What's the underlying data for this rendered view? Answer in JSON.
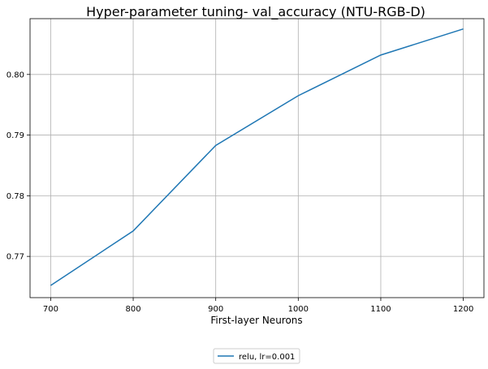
{
  "chart_data": {
    "type": "line",
    "title": "Hyper-parameter tuning- val_accuracy (NTU-RGB-D)",
    "xlabel": "First-layer Neurons",
    "ylabel": "",
    "x": [
      700,
      800,
      900,
      1000,
      1100,
      1200
    ],
    "series": [
      {
        "name": "relu, lr=0.001",
        "values": [
          0.7652,
          0.7742,
          0.7883,
          0.7965,
          0.8032,
          0.8075
        ],
        "color": "#1f77b4"
      }
    ],
    "xticks": [
      "700",
      "800",
      "900",
      "1000",
      "1100",
      "1200"
    ],
    "yticks": [
      "0.77",
      "0.78",
      "0.79",
      "0.80"
    ],
    "xlim": [
      675,
      1225
    ],
    "ylim": [
      0.7632,
      0.8092
    ],
    "grid": true,
    "legend_position": "bottom-center"
  }
}
